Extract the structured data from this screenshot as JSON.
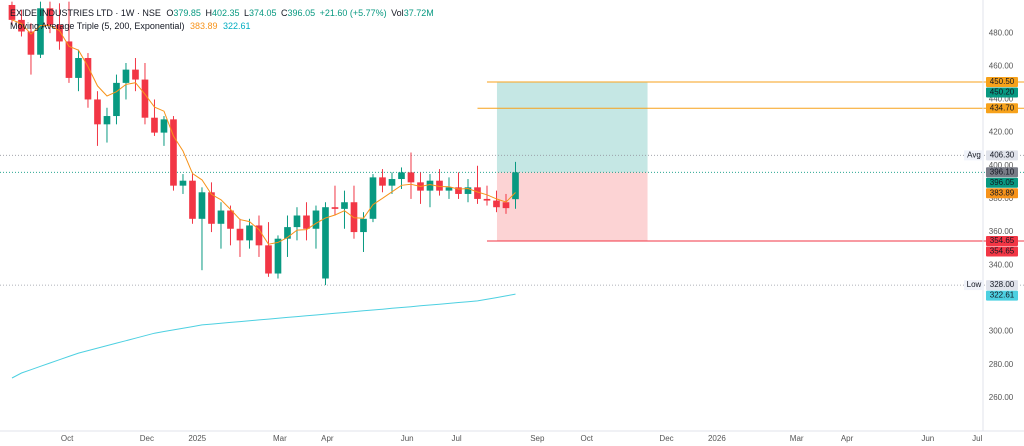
{
  "chart_data": {
    "type": "candlestick",
    "header": {
      "title": "EXIDE INDUSTRIES LTD · 1W · NSE",
      "ohlc": [
        {
          "label": "O",
          "value": "379.85"
        },
        {
          "label": "H",
          "value": "402.35"
        },
        {
          "label": "L",
          "value": "374.05"
        },
        {
          "label": "C",
          "value": "396.05"
        }
      ],
      "change": "+21.60 (+5.77%)",
      "volume_label": "Vol",
      "volume": "37.72M",
      "indicator": "Moving Average Triple (5, 200, Exponential)",
      "indicator_values": [
        "383.89",
        "322.61"
      ]
    },
    "up_color": "#089981",
    "down_color": "#f23645",
    "open": [
      497,
      488,
      481,
      467,
      495,
      485,
      475,
      453,
      465,
      440,
      425,
      430,
      450,
      458,
      452,
      429,
      420,
      428,
      388,
      391,
      368,
      384,
      365,
      373,
      362,
      355,
      364,
      352,
      335,
      356,
      363,
      370,
      362,
      332,
      375,
      374,
      378,
      360,
      368,
      393,
      388,
      392,
      396,
      390,
      385,
      391,
      385,
      387,
      383,
      387,
      380,
      379,
      378,
      379.85
    ],
    "high": [
      499,
      494,
      486,
      499,
      499,
      498,
      499,
      470,
      468,
      445,
      435,
      455,
      462,
      465,
      462,
      440,
      430,
      430,
      395,
      395,
      387,
      390,
      378,
      376,
      368,
      368,
      370,
      366,
      358,
      370,
      375,
      378,
      376,
      378,
      388,
      385,
      388,
      372,
      395,
      398,
      396,
      399,
      408,
      396,
      395,
      398,
      393,
      396,
      392,
      400,
      388,
      385,
      383,
      402.35
    ],
    "low": [
      485,
      478,
      455,
      465,
      480,
      470,
      450,
      445,
      435,
      412,
      414,
      425,
      440,
      445,
      425,
      418,
      412,
      385,
      383,
      365,
      337,
      360,
      350,
      352,
      345,
      350,
      345,
      333,
      332,
      345,
      355,
      355,
      350,
      328,
      370,
      362,
      356,
      348,
      366,
      384,
      383,
      386,
      380,
      377,
      375,
      382,
      380,
      380,
      378,
      377,
      376,
      372,
      371,
      374.05
    ],
    "close": [
      488,
      481,
      467,
      495,
      485,
      475,
      453,
      465,
      440,
      425,
      430,
      450,
      458,
      452,
      429,
      420,
      428,
      388,
      391,
      368,
      384,
      365,
      373,
      362,
      355,
      364,
      352,
      335,
      356,
      363,
      370,
      362,
      373,
      375,
      374,
      378,
      360,
      368,
      393,
      388,
      392,
      396,
      390,
      385,
      391,
      385,
      387,
      383,
      387,
      380,
      379,
      375,
      374.45,
      396.05
    ],
    "lines": [
      {
        "color": "#f7931a",
        "values": [
          488,
          485.7,
          479.4,
          484.6,
          484.7,
          481.5,
          472,
          469.7,
          459.8,
          448.2,
          442.1,
          444.7,
          449.1,
          450.1,
          443.1,
          435.4,
          432.9,
          417.9,
          408.9,
          395.3,
          391.5,
          382.7,
          379.5,
          373.7,
          367.5,
          366.3,
          361.5,
          352.7,
          353.8,
          356.8,
          361.2,
          361.5,
          365.3,
          368.5,
          370.3,
          372.9,
          368.6,
          368.4,
          376.6,
          380.4,
          384.3,
          388.2,
          388.8,
          387.5,
          388.7,
          387.5,
          387.3,
          385.9,
          386.3,
          384.2,
          382.5,
          380,
          378.1,
          383.89
        ]
      },
      {
        "color": "#4dd0e1",
        "values": [
          272,
          275,
          277,
          279,
          281,
          283,
          285,
          287,
          288.5,
          290,
          291.5,
          293,
          294.5,
          296,
          297.5,
          299,
          300,
          301,
          302,
          303,
          304,
          304.5,
          305,
          305.5,
          306,
          306.5,
          307,
          307.5,
          308,
          308.5,
          309,
          309.5,
          310,
          310.5,
          311,
          311.5,
          312,
          312.5,
          313,
          313.5,
          314,
          314.5,
          315,
          315.5,
          316,
          316.5,
          317,
          317.5,
          318,
          318.5,
          319.5,
          320.5,
          321.5,
          322.61
        ]
      }
    ],
    "position": {
      "start": 51.05,
      "end": 66.9,
      "target": 450.2,
      "entry": 396.05,
      "stop": 354.65,
      "profit_color": "#b2dfdb",
      "loss_color": "#fccbcd"
    },
    "rays": [
      {
        "value": 450.5,
        "start": 50,
        "color": "#f7a21b"
      },
      {
        "value": 434.7,
        "start": 49,
        "color": "#f7a21b"
      },
      {
        "value": 354.65,
        "start": 50,
        "color": "#f23645"
      }
    ],
    "levels": [
      {
        "value": 450.5,
        "label": "450.50",
        "color": "#f7a21b"
      },
      {
        "value": 450.2,
        "label": "450.20",
        "color": "#089981"
      },
      {
        "value": 434.7,
        "label": "434.70",
        "color": "#f7a21b"
      },
      {
        "value": 406.3,
        "label": "406.30",
        "tag": "Avg",
        "color": "#e0e3eb",
        "line": "dotted"
      },
      {
        "value": 396.1,
        "label": "396.10",
        "color": "#787b86"
      },
      {
        "value": 396.05,
        "label": "396.05",
        "color": "#089981",
        "line": "dotted"
      },
      {
        "value": 383.89,
        "label": "383.89",
        "color": "#f7931a"
      },
      {
        "value": 354.65,
        "label": "354.65",
        "color": "#f23645"
      },
      {
        "value": 354.65,
        "label": "354.65",
        "color": "#f23645"
      },
      {
        "value": 328,
        "label": "328.00",
        "tag": "Low",
        "color": "#e0e3eb",
        "line": "dotted"
      },
      {
        "value": 322.61,
        "label": "322.61",
        "color": "#4dd0e1"
      }
    ],
    "ylim": [
      240,
      500
    ],
    "yticks": [
      {
        "value": 260,
        "label": "260.00"
      },
      {
        "value": 280,
        "label": "280.00"
      },
      {
        "value": 300,
        "label": "300.00"
      },
      {
        "value": 320,
        "label": "320.00"
      },
      {
        "value": 340,
        "label": "340.00"
      },
      {
        "value": 360,
        "label": "360.00"
      },
      {
        "value": 380,
        "label": "380.00"
      },
      {
        "value": 400,
        "label": "400.00"
      },
      {
        "value": 420,
        "label": "420.00"
      },
      {
        "value": 440,
        "label": "440.00"
      },
      {
        "value": 460,
        "label": "460.00"
      },
      {
        "value": 480,
        "label": "480.00"
      }
    ],
    "xlim": [
      -1.26,
      102.21
    ],
    "xticks": [
      {
        "value": 5.8,
        "label": "Oct"
      },
      {
        "value": 14.2,
        "label": "Dec"
      },
      {
        "value": 19.5,
        "label": "2025"
      },
      {
        "value": 28.2,
        "label": "Mar"
      },
      {
        "value": 33.2,
        "label": "Apr"
      },
      {
        "value": 41.6,
        "label": "Jun"
      },
      {
        "value": 46.8,
        "label": "Jul"
      },
      {
        "value": 55.3,
        "label": "Sep"
      },
      {
        "value": 60.5,
        "label": "Oct"
      },
      {
        "value": 68.9,
        "label": "Dec"
      },
      {
        "value": 74.2,
        "label": "2026"
      },
      {
        "value": 82.6,
        "label": "Mar"
      },
      {
        "value": 87.9,
        "label": "Apr"
      },
      {
        "value": 96.4,
        "label": "Jun"
      },
      {
        "value": 101.6,
        "label": "Jul"
      }
    ],
    "grid": false
  }
}
